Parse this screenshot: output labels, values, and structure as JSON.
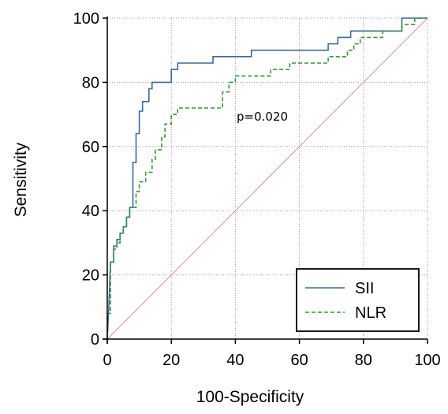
{
  "chart_data": {
    "type": "line",
    "title": "",
    "xlabel": "100-Specificity",
    "ylabel": "Sensitivity",
    "xlim": [
      0,
      100
    ],
    "ylim": [
      0,
      100
    ],
    "x_ticks": [
      0,
      20,
      40,
      60,
      80,
      100
    ],
    "y_ticks": [
      0,
      20,
      40,
      60,
      80,
      100
    ],
    "grid": "dotted",
    "legend": "bottom-right",
    "annotation": "p=0.020",
    "series": [
      {
        "name": "SII",
        "color": "#3a6a9c",
        "style": "solid",
        "points": [
          [
            0,
            0
          ],
          [
            0.5,
            10
          ],
          [
            1,
            24
          ],
          [
            2,
            24
          ],
          [
            2,
            29
          ],
          [
            3,
            29
          ],
          [
            3,
            31
          ],
          [
            4,
            31
          ],
          [
            4,
            33
          ],
          [
            5,
            33
          ],
          [
            5,
            35
          ],
          [
            6,
            35
          ],
          [
            6,
            38
          ],
          [
            7,
            38
          ],
          [
            7,
            41
          ],
          [
            8,
            41
          ],
          [
            8,
            55
          ],
          [
            9,
            55
          ],
          [
            9,
            64
          ],
          [
            10,
            64
          ],
          [
            10,
            71
          ],
          [
            11,
            71
          ],
          [
            11,
            74
          ],
          [
            13,
            74
          ],
          [
            13,
            78
          ],
          [
            14,
            78
          ],
          [
            14,
            80
          ],
          [
            20,
            80
          ],
          [
            20,
            84
          ],
          [
            22,
            84
          ],
          [
            22,
            86
          ],
          [
            33,
            86
          ],
          [
            33,
            88
          ],
          [
            45,
            88
          ],
          [
            45,
            90
          ],
          [
            69,
            90
          ],
          [
            69,
            92
          ],
          [
            72,
            92
          ],
          [
            72,
            94
          ],
          [
            76,
            94
          ],
          [
            76,
            96
          ],
          [
            92,
            96
          ],
          [
            92,
            100
          ],
          [
            100,
            100
          ]
        ]
      },
      {
        "name": "NLR",
        "color": "#2e9b2e",
        "style": "dashed",
        "points": [
          [
            0,
            0
          ],
          [
            0,
            8
          ],
          [
            1,
            8
          ],
          [
            1,
            24
          ],
          [
            2,
            24
          ],
          [
            2,
            28
          ],
          [
            3,
            28
          ],
          [
            3,
            30
          ],
          [
            4,
            30
          ],
          [
            4,
            33
          ],
          [
            5,
            33
          ],
          [
            5,
            35
          ],
          [
            6,
            35
          ],
          [
            6,
            38
          ],
          [
            7,
            38
          ],
          [
            7,
            41
          ],
          [
            9,
            41
          ],
          [
            9,
            46
          ],
          [
            10,
            46
          ],
          [
            10,
            49
          ],
          [
            12,
            49
          ],
          [
            12,
            52
          ],
          [
            14,
            52
          ],
          [
            14,
            56
          ],
          [
            15,
            56
          ],
          [
            15,
            59
          ],
          [
            17,
            59
          ],
          [
            17,
            63
          ],
          [
            18,
            63
          ],
          [
            18,
            67
          ],
          [
            20,
            67
          ],
          [
            20,
            70
          ],
          [
            22,
            70
          ],
          [
            22,
            72
          ],
          [
            36,
            72
          ],
          [
            36,
            77
          ],
          [
            38,
            77
          ],
          [
            38,
            80
          ],
          [
            40,
            80
          ],
          [
            40,
            82
          ],
          [
            51,
            82
          ],
          [
            51,
            84
          ],
          [
            57,
            84
          ],
          [
            57,
            86
          ],
          [
            69,
            86
          ],
          [
            69,
            88
          ],
          [
            75,
            88
          ],
          [
            75,
            90
          ],
          [
            77,
            90
          ],
          [
            77,
            92
          ],
          [
            79,
            92
          ],
          [
            79,
            94
          ],
          [
            86,
            94
          ],
          [
            86,
            96
          ],
          [
            92,
            96
          ],
          [
            92,
            98
          ],
          [
            96,
            98
          ],
          [
            96,
            100
          ],
          [
            100,
            100
          ]
        ]
      },
      {
        "name": "",
        "color": "#d08f96",
        "style": "solid",
        "points": [
          [
            0,
            0
          ],
          [
            100,
            100
          ]
        ]
      }
    ]
  }
}
